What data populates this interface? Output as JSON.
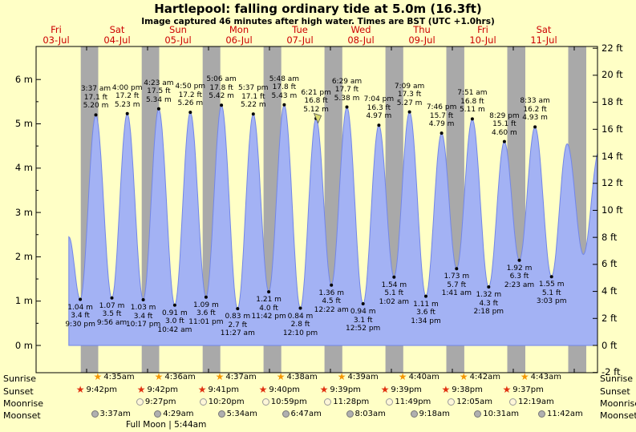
{
  "title": "Hartlepool: falling ordinary tide at 5.0m (16.3ft)",
  "subtitle": "Image captured 46 minutes after high water. Times are BST (UTC +1.0hrs)",
  "colors": {
    "background": "#ffffc6",
    "night_band": "#a9a9a9",
    "tide_fill": "#a3b2f4",
    "tide_stroke": "#7286e8",
    "day_label": "#cc0000",
    "sunrise_star": "#f59700",
    "sunset_star": "#e03010",
    "moonrise_fill": "#fdf6d8",
    "moonrise_border": "#999999",
    "moonset_fill": "#b0b0b0",
    "moonset_border": "#777777",
    "now_arrow": "#d9d96e"
  },
  "chart_data": {
    "type": "area",
    "title": "Hartlepool: falling ordinary tide at 5.0m (16.3ft)",
    "y_left": {
      "unit": "m",
      "min": 0,
      "max": 6,
      "step": 1
    },
    "y_right": {
      "unit": "ft",
      "min": -2,
      "max": 22,
      "step": 2
    },
    "days": [
      {
        "weekday": "Fri",
        "date": "03-Jul"
      },
      {
        "weekday": "Sat",
        "date": "04-Jul"
      },
      {
        "weekday": "Sun",
        "date": "05-Jul"
      },
      {
        "weekday": "Mon",
        "date": "06-Jul"
      },
      {
        "weekday": "Tue",
        "date": "07-Jul"
      },
      {
        "weekday": "Wed",
        "date": "08-Jul"
      },
      {
        "weekday": "Thu",
        "date": "09-Jul"
      },
      {
        "weekday": "Fri",
        "date": "10-Jul"
      },
      {
        "weekday": "Sat",
        "date": "11-Jul"
      }
    ],
    "highs": [
      {
        "day": 1,
        "time": "3:37 am",
        "ft": "17.1 ft",
        "m": "5.20 m",
        "height_m": 5.2
      },
      {
        "day": 1,
        "time": "4:00 pm",
        "ft": "17.2 ft",
        "m": "5.23 m",
        "height_m": 5.23
      },
      {
        "day": 2,
        "time": "4:23 am",
        "ft": "17.5 ft",
        "m": "5.34 m",
        "height_m": 5.34
      },
      {
        "day": 2,
        "time": "4:50 pm",
        "ft": "17.2 ft",
        "m": "5.26 m",
        "height_m": 5.26
      },
      {
        "day": 3,
        "time": "5:06 am",
        "ft": "17.8 ft",
        "m": "5.42 m",
        "height_m": 5.42
      },
      {
        "day": 3,
        "time": "5:37 pm",
        "ft": "17.1 ft",
        "m": "5.22 m",
        "height_m": 5.22
      },
      {
        "day": 4,
        "time": "5:48 am",
        "ft": "17.8 ft",
        "m": "5.43 m",
        "height_m": 5.43
      },
      {
        "day": 4,
        "time": "6:21 pm",
        "ft": "16.8 ft",
        "m": "5.12 m",
        "height_m": 5.12
      },
      {
        "day": 5,
        "time": "6:29 am",
        "ft": "17.7 ft",
        "m": "5.38 m",
        "height_m": 5.38
      },
      {
        "day": 5,
        "time": "7:04 pm",
        "ft": "16.3 ft",
        "m": "4.97 m",
        "height_m": 4.97
      },
      {
        "day": 6,
        "time": "7:09 am",
        "ft": "17.3 ft",
        "m": "5.27 m",
        "height_m": 5.27
      },
      {
        "day": 6,
        "time": "7:46 pm",
        "ft": "15.7 ft",
        "m": "4.79 m",
        "height_m": 4.79
      },
      {
        "day": 7,
        "time": "7:51 am",
        "ft": "16.8 ft",
        "m": "5.11 m",
        "height_m": 5.11
      },
      {
        "day": 7,
        "time": "8:29 pm",
        "ft": "15.1 ft",
        "m": "4.60 m",
        "height_m": 4.6
      },
      {
        "day": 8,
        "time": "8:33 am",
        "ft": "16.2 ft",
        "m": "4.93 m",
        "height_m": 4.93
      }
    ],
    "lows": [
      {
        "day": 0,
        "time": "9:30 pm",
        "ft": "3.4 ft",
        "m": "1.04 m",
        "height_m": 1.04
      },
      {
        "day": 1,
        "time": "9:56 am",
        "ft": "3.5 ft",
        "m": "1.07 m",
        "height_m": 1.07
      },
      {
        "day": 1,
        "time": "10:17 pm",
        "ft": "3.4 ft",
        "m": "1.03 m",
        "height_m": 1.03
      },
      {
        "day": 2,
        "time": "10:42 am",
        "ft": "3.0 ft",
        "m": "0.91 m",
        "height_m": 0.91
      },
      {
        "day": 2,
        "time": "11:01 pm",
        "ft": "3.6 ft",
        "m": "1.09 m",
        "height_m": 1.09
      },
      {
        "day": 3,
        "time": "11:27 am",
        "ft": "2.7 ft",
        "m": "0.83 m",
        "height_m": 0.83
      },
      {
        "day": 3,
        "time": "11:42 pm",
        "ft": "4.0 ft",
        "m": "1.21 m",
        "height_m": 1.21
      },
      {
        "day": 4,
        "time": "12:10 pm",
        "ft": "2.8 ft",
        "m": "0.84 m",
        "height_m": 0.84
      },
      {
        "day": 5,
        "time": "12:22 am",
        "ft": "4.5 ft",
        "m": "1.36 m",
        "height_m": 1.36
      },
      {
        "day": 5,
        "time": "12:52 pm",
        "ft": "3.1 ft",
        "m": "0.94 m",
        "height_m": 0.94
      },
      {
        "day": 6,
        "time": "1:02 am",
        "ft": "5.1 ft",
        "m": "1.54 m",
        "height_m": 1.54
      },
      {
        "day": 6,
        "time": "1:34 pm",
        "ft": "3.6 ft",
        "m": "1.11 m",
        "height_m": 1.11
      },
      {
        "day": 7,
        "time": "1:41 am",
        "ft": "5.7 ft",
        "m": "1.73 m",
        "height_m": 1.73
      },
      {
        "day": 7,
        "time": "2:18 pm",
        "ft": "4.3 ft",
        "m": "1.32 m",
        "height_m": 1.32
      },
      {
        "day": 8,
        "time": "2:23 am",
        "ft": "6.3 ft",
        "m": "1.92 m",
        "height_m": 1.92
      },
      {
        "day": 8,
        "time": "3:03 pm",
        "ft": "5.1 ft",
        "m": "1.55 m",
        "height_m": 1.55
      }
    ],
    "now_marker": {
      "day": 4,
      "time": "6:21 pm",
      "minutes_after": 46,
      "height_m": 5.0
    },
    "curve_edge_points": {
      "start": {
        "t": 17.0,
        "h": 2.45
      },
      "end": [
        {
          "t": 213.2,
          "h": 4.55
        },
        {
          "t": 219.6,
          "h": 2.05
        },
        {
          "t": 225.8,
          "h": 4.4
        }
      ]
    },
    "astro": {
      "rows": [
        {
          "id": "sunrise",
          "label": "Sunrise",
          "icon": "sunrise-star-icon",
          "entries": [
            {
              "day": 1,
              "time": "4:35am"
            },
            {
              "day": 2,
              "time": "4:36am"
            },
            {
              "day": 3,
              "time": "4:37am"
            },
            {
              "day": 4,
              "time": "4:38am"
            },
            {
              "day": 5,
              "time": "4:39am"
            },
            {
              "day": 6,
              "time": "4:40am"
            },
            {
              "day": 7,
              "time": "4:42am"
            },
            {
              "day": 8,
              "time": "4:43am"
            }
          ]
        },
        {
          "id": "sunset",
          "label": "Sunset",
          "icon": "sunset-star-icon",
          "entries": [
            {
              "day": 0,
              "time": "9:42pm"
            },
            {
              "day": 1,
              "time": "9:42pm"
            },
            {
              "day": 2,
              "time": "9:41pm"
            },
            {
              "day": 3,
              "time": "9:40pm"
            },
            {
              "day": 4,
              "time": "9:39pm"
            },
            {
              "day": 5,
              "time": "9:39pm"
            },
            {
              "day": 6,
              "time": "9:38pm"
            },
            {
              "day": 7,
              "time": "9:37pm"
            }
          ]
        },
        {
          "id": "moonrise",
          "label": "Moonrise",
          "icon": "moonrise-circle-icon",
          "entries": [
            {
              "day": 1,
              "time": "9:27pm"
            },
            {
              "day": 2,
              "time": "10:20pm"
            },
            {
              "day": 3,
              "time": "10:59pm"
            },
            {
              "day": 4,
              "time": "11:28pm"
            },
            {
              "day": 5,
              "time": "11:49pm"
            },
            {
              "day": 7,
              "time": "12:05am"
            },
            {
              "day": 8,
              "time": "12:19am"
            }
          ]
        },
        {
          "id": "moonset",
          "label": "Moonset",
          "icon": "moonset-circle-icon",
          "entries": [
            {
              "day": 1,
              "time": "3:37am"
            },
            {
              "day": 2,
              "time": "4:29am"
            },
            {
              "day": 3,
              "time": "5:34am"
            },
            {
              "day": 4,
              "time": "6:47am"
            },
            {
              "day": 5,
              "time": "8:03am"
            },
            {
              "day": 6,
              "time": "9:18am"
            },
            {
              "day": 7,
              "time": "10:31am"
            },
            {
              "day": 8,
              "time": "11:42am"
            }
          ]
        }
      ],
      "full_moon": "Full Moon | 5:44am"
    }
  }
}
